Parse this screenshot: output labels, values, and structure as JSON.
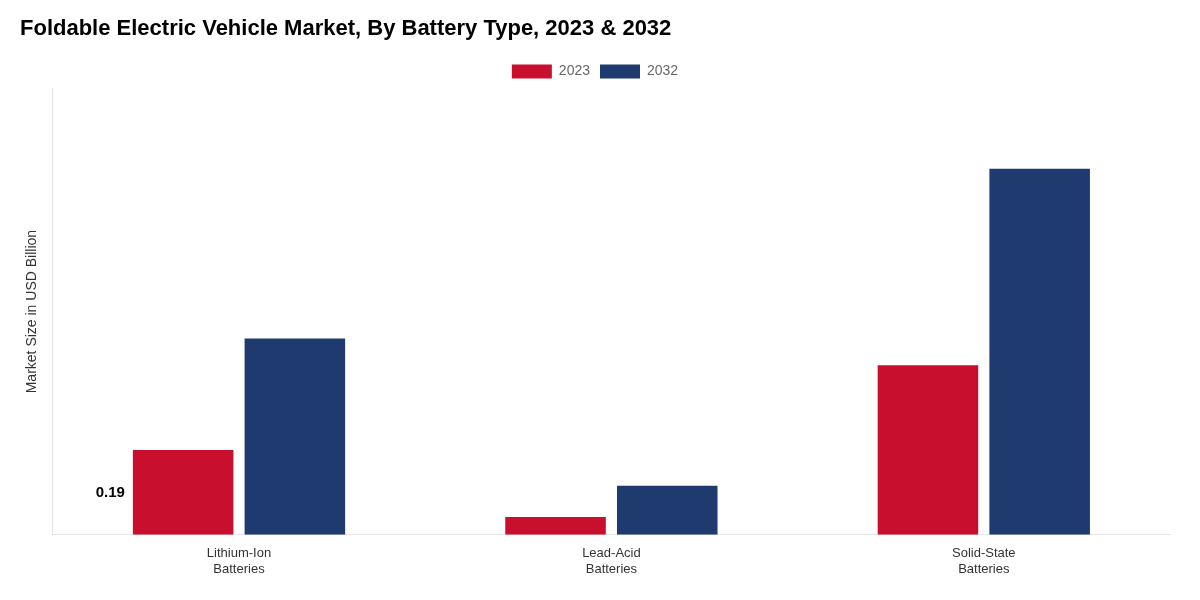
{
  "chart_data": {
    "type": "bar",
    "title": "Foldable Electric Vehicle Market, By Battery Type, 2023 & 2032",
    "ylabel": "Market Size in USD Billion",
    "categories": [
      "Lithium-Ion\nBatteries",
      "Lead-Acid\nBatteries",
      "Solid-State\nBatteries"
    ],
    "series": [
      {
        "name": "2023",
        "color": "#c8102e",
        "values": [
          0.19,
          0.04,
          0.38
        ]
      },
      {
        "name": "2032",
        "color": "#1f3a6e",
        "values": [
          0.44,
          0.11,
          0.82
        ]
      }
    ],
    "ylim": [
      0,
      1.0
    ],
    "yticks": [],
    "tick_labels": "x",
    "grid": false,
    "legend": "top",
    "annotations": [
      {
        "text": "0.19",
        "category": "Lithium-Ion\nBatteries",
        "series": "2023"
      }
    ]
  }
}
